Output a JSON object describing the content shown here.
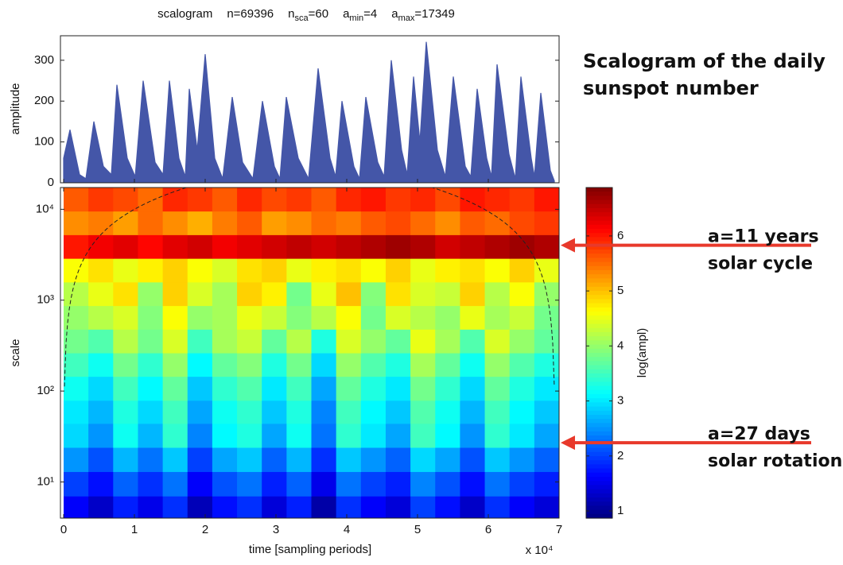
{
  "heading": [
    "Scalogram of the daily",
    "sunspot number"
  ],
  "chart_data": [
    {
      "type": "area",
      "title_parts": [
        {
          "text": "scalogram"
        },
        {
          "text": "n=69396"
        },
        {
          "text": "n",
          "sub": "sca",
          "rest": "=60"
        },
        {
          "text": "a",
          "sub": "min",
          "rest": "=4"
        },
        {
          "text": "a",
          "sub": "max",
          "rest": "=17349"
        }
      ],
      "ylabel": "amplitude",
      "color": "#4456a8",
      "xlim": [
        -450,
        70000
      ],
      "ylim": [
        0,
        360
      ],
      "yticks": [
        0,
        100,
        200,
        300
      ],
      "x": [
        0,
        899,
        2247,
        3146,
        4270,
        5618,
        6742,
        7528,
        8989,
        10112,
        11236,
        12921,
        14045,
        14944,
        16292,
        17191,
        17753,
        18876,
        20000,
        21348,
        22472,
        23820,
        25281,
        26742,
        28090,
        29775,
        30562,
        31461,
        33146,
        34607,
        35955,
        37640,
        38427,
        39326,
        41011,
        41798,
        42697,
        44382,
        45281,
        46292,
        47753,
        48539,
        49438,
        50337,
        51236,
        52809,
        53933,
        55056,
        56742,
        57528,
        58427,
        59775,
        60449,
        61236,
        62921,
        63820,
        64607,
        66067,
        66517,
        67416,
        68764,
        69326
      ],
      "values": [
        60,
        130,
        20,
        10,
        150,
        40,
        20,
        240,
        60,
        15,
        250,
        50,
        20,
        250,
        60,
        15,
        230,
        80,
        315,
        60,
        10,
        210,
        50,
        10,
        200,
        40,
        10,
        210,
        60,
        10,
        280,
        60,
        15,
        200,
        40,
        10,
        210,
        50,
        15,
        300,
        80,
        20,
        260,
        100,
        345,
        80,
        15,
        260,
        40,
        15,
        230,
        60,
        15,
        290,
        70,
        10,
        260,
        60,
        15,
        220,
        30,
        5
      ]
    },
    {
      "type": "heatmap",
      "xlabel": "time [sampling periods]",
      "x_multiplier_label": "x 10⁴",
      "ylabel": "scale",
      "colorbar_label": "log(ampl)",
      "colormap": "jet",
      "log_y": true,
      "xlim": [
        -450,
        70000
      ],
      "ylim": [
        4,
        17349
      ],
      "xticks": [
        {
          "value": 0,
          "label": "0"
        },
        {
          "value": 10000,
          "label": "1"
        },
        {
          "value": 20000,
          "label": "2"
        },
        {
          "value": 30000,
          "label": "3"
        },
        {
          "value": 40000,
          "label": "4"
        },
        {
          "value": 50000,
          "label": "5"
        },
        {
          "value": 60000,
          "label": "6"
        },
        {
          "value": 70000,
          "label": "7"
        }
      ],
      "yticks": [
        {
          "value": 10,
          "label": "10¹"
        },
        {
          "value": 100,
          "label": "10²"
        },
        {
          "value": 1000,
          "label": "10³"
        },
        {
          "value": 10000,
          "label": "10⁴"
        }
      ],
      "clim": [
        0.87,
        6.88
      ],
      "cticks": [
        1,
        2,
        3,
        4,
        5,
        6
      ],
      "x_edges": [
        0,
        3500,
        7000,
        10500,
        14000,
        17500,
        21000,
        24500,
        28000,
        31500,
        35000,
        38500,
        42000,
        45500,
        49000,
        52500,
        56000,
        59500,
        63000,
        66500,
        70000
      ],
      "y_edges": [
        4,
        7,
        13,
        24,
        44,
        79,
        145,
        263,
        479,
        871,
        1585,
        2884,
        5248,
        9550,
        17349
      ],
      "z": [
        [
          1.6,
          1.3,
          1.8,
          1.5,
          1.9,
          1.2,
          1.7,
          1.9,
          1.4,
          1.8,
          1.1,
          1.9,
          1.6,
          1.4,
          2.0,
          1.7,
          1.3,
          1.9,
          1.6,
          1.4
        ],
        [
          2.0,
          1.7,
          2.2,
          1.9,
          2.3,
          1.6,
          2.1,
          2.3,
          1.8,
          2.2,
          1.5,
          2.3,
          2.0,
          1.8,
          2.4,
          2.1,
          1.7,
          2.3,
          2.0,
          1.8
        ],
        [
          2.5,
          2.1,
          2.7,
          2.3,
          2.8,
          2.0,
          2.6,
          2.8,
          2.2,
          2.7,
          1.9,
          2.8,
          2.5,
          2.2,
          2.9,
          2.6,
          2.1,
          2.8,
          2.5,
          2.2
        ],
        [
          2.9,
          2.5,
          3.2,
          2.7,
          3.4,
          2.4,
          3.1,
          3.3,
          2.6,
          3.2,
          2.3,
          3.4,
          3.0,
          2.6,
          3.5,
          3.1,
          2.5,
          3.4,
          3.0,
          2.6
        ],
        [
          3.0,
          2.7,
          3.3,
          2.9,
          3.5,
          2.6,
          3.2,
          3.4,
          2.8,
          3.3,
          2.4,
          3.5,
          3.1,
          2.8,
          3.6,
          3.2,
          2.7,
          3.5,
          3.1,
          2.8
        ],
        [
          3.2,
          2.9,
          3.5,
          3.1,
          3.7,
          2.8,
          3.4,
          3.6,
          3.0,
          3.5,
          2.6,
          3.7,
          3.3,
          3.0,
          3.8,
          3.4,
          2.9,
          3.7,
          3.3,
          3.0
        ],
        [
          3.5,
          3.2,
          3.8,
          3.4,
          4.0,
          3.1,
          3.7,
          3.9,
          3.3,
          3.8,
          2.9,
          4.0,
          3.6,
          3.3,
          4.1,
          3.7,
          3.2,
          4.0,
          3.6,
          3.3
        ],
        [
          3.8,
          3.6,
          4.2,
          3.8,
          4.4,
          3.5,
          4.1,
          4.3,
          3.7,
          4.2,
          3.3,
          4.4,
          4.0,
          3.7,
          4.5,
          4.1,
          3.6,
          4.4,
          4.0,
          3.7
        ],
        [
          4.0,
          4.2,
          4.4,
          3.9,
          4.6,
          4.0,
          4.1,
          4.5,
          4.3,
          3.9,
          4.2,
          4.6,
          3.8,
          4.4,
          4.2,
          4.0,
          4.5,
          4.1,
          4.3,
          3.8
        ],
        [
          4.2,
          4.5,
          4.8,
          4.0,
          4.9,
          4.4,
          4.1,
          4.9,
          4.7,
          3.8,
          4.5,
          5.0,
          3.9,
          4.8,
          4.4,
          4.3,
          4.9,
          4.2,
          4.6,
          4.0
        ],
        [
          4.6,
          4.8,
          4.5,
          4.7,
          4.9,
          4.6,
          4.4,
          4.8,
          4.9,
          4.5,
          4.7,
          4.8,
          4.6,
          4.9,
          4.5,
          4.7,
          4.8,
          4.6,
          4.9,
          4.5
        ],
        [
          6.0,
          6.2,
          6.3,
          6.1,
          6.3,
          6.4,
          6.2,
          6.3,
          6.4,
          6.5,
          6.4,
          6.5,
          6.6,
          6.7,
          6.6,
          6.4,
          6.5,
          6.6,
          6.7,
          6.6
        ],
        [
          5.3,
          5.4,
          5.2,
          5.5,
          5.3,
          5.1,
          5.4,
          5.6,
          5.2,
          5.3,
          5.5,
          5.4,
          5.6,
          5.7,
          5.5,
          5.3,
          5.6,
          5.5,
          5.7,
          5.8
        ],
        [
          5.6,
          5.8,
          5.7,
          5.5,
          5.9,
          5.8,
          5.6,
          5.9,
          5.7,
          5.8,
          5.6,
          5.9,
          6.0,
          5.8,
          5.9,
          5.7,
          6.0,
          5.9,
          5.8,
          6.0
        ]
      ],
      "annotation_color": "#e8392b",
      "annotations": [
        {
          "lines": [
            "a=11 years",
            "solar cycle"
          ],
          "value": 4018
        },
        {
          "lines": [
            "a=27 days",
            "solar rotation"
          ],
          "value": 27
        }
      ]
    }
  ]
}
